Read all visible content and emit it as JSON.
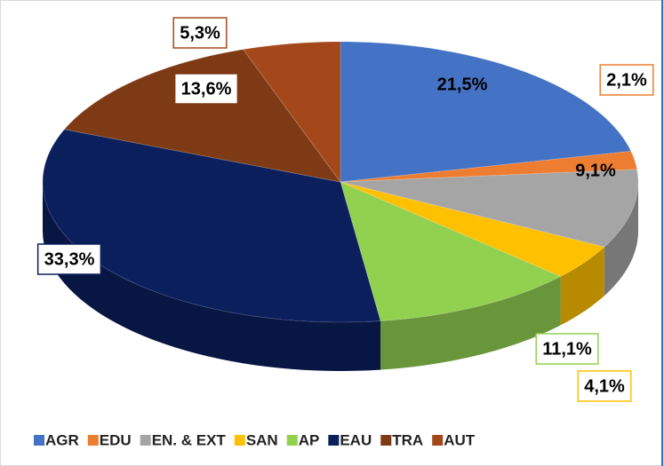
{
  "chart_data": {
    "type": "pie",
    "categories": [
      "AGR",
      "EDU",
      "EN. & EXT",
      "SAN",
      "AP",
      "EAU",
      "TRA",
      "AUT"
    ],
    "values": [
      21.5,
      2.1,
      9.1,
      4.1,
      11.1,
      33.3,
      13.6,
      5.3
    ],
    "value_labels": [
      "21,5%",
      "2,1%",
      "9,1%",
      "4,1%",
      "11,1%",
      "33,3%",
      "13,6%",
      "5,3%"
    ],
    "colors": [
      "#4472c4",
      "#ed7d31",
      "#a5a5a5",
      "#ffc000",
      "#92d050",
      "#0a1f5c",
      "#7e3a14",
      "#a4481b"
    ],
    "legend": "bottom"
  }
}
